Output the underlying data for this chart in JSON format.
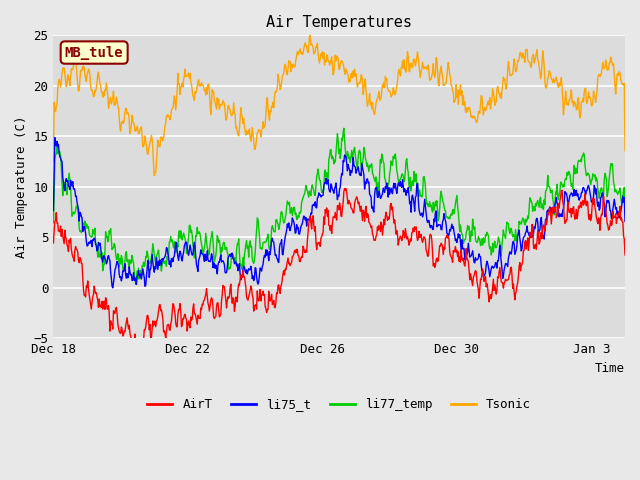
{
  "title": "Air Temperatures",
  "xlabel": "Time",
  "ylabel": "Air Temperature (C)",
  "ylim": [
    -5,
    25
  ],
  "yticks": [
    -5,
    0,
    5,
    10,
    15,
    20,
    25
  ],
  "plot_bg_color": "#e8e8e8",
  "ax_bg_color": "#dcdcdc",
  "grid_color": "#ffffff",
  "annotation_label": "MB_tule",
  "annotation_box_color": "#ffffcc",
  "annotation_text_color": "#8b0000",
  "series_colors": {
    "AirT": "#ff0000",
    "li75_t": "#0000ff",
    "li77_temp": "#00cc00",
    "Tsonic": "#ffa500"
  },
  "xtick_labels": [
    "Dec 18",
    "Dec 22",
    "Dec 26",
    "Dec 30",
    "Jan 3"
  ],
  "xtick_positions": [
    0,
    4,
    8,
    12,
    16
  ],
  "n_points": 800,
  "seed": 1234,
  "airt_base_x": [
    0,
    0.5,
    1,
    1.5,
    2,
    2.5,
    3,
    3.5,
    4,
    4.5,
    5,
    5.5,
    6,
    6.5,
    7,
    7.5,
    8,
    8.5,
    9,
    9.5,
    10,
    10.5,
    11,
    11.5,
    12,
    12.5,
    13,
    13.5,
    14,
    14.5,
    15,
    15.5,
    16,
    16.5,
    17
  ],
  "airt_base_y": [
    7,
    4,
    0,
    -2,
    -4,
    -5,
    -4,
    -3,
    -2,
    -3,
    -2,
    0,
    -1,
    -2,
    2,
    4,
    6,
    8,
    9,
    6,
    7,
    6,
    4,
    4,
    3,
    1,
    0,
    1,
    3,
    5,
    7,
    8,
    8,
    7,
    7
  ],
  "li75_base_x": [
    0,
    0.5,
    1,
    1.5,
    2,
    2.5,
    3,
    3.5,
    4,
    4.5,
    5,
    5.5,
    6,
    6.5,
    7,
    7.5,
    8,
    8.5,
    9,
    9.5,
    10,
    10.5,
    11,
    11.5,
    12,
    12.5,
    13,
    13.5,
    14,
    14.5,
    15,
    15.5,
    16,
    16.5,
    17
  ],
  "li75_base_y": [
    14,
    10,
    5,
    3,
    2,
    1,
    2,
    3,
    4,
    3,
    3,
    2,
    2,
    3,
    5,
    7,
    9,
    11,
    12,
    9,
    10,
    9,
    7,
    6,
    5,
    3,
    2,
    3,
    5,
    6,
    8,
    9,
    9,
    8,
    8
  ],
  "li77_base_x": [
    0,
    0.5,
    1,
    1.5,
    2,
    2.5,
    3,
    3.5,
    4,
    4.5,
    5,
    5.5,
    6,
    6.5,
    7,
    7.5,
    8,
    8.5,
    9,
    9.5,
    10,
    10.5,
    11,
    11.5,
    12,
    12.5,
    13,
    13.5,
    14,
    14.5,
    15,
    15.5,
    16,
    16.5,
    17
  ],
  "li77_base_y": [
    13,
    9,
    5,
    4,
    3,
    2,
    3,
    4,
    5,
    4,
    4,
    3,
    4,
    5,
    7,
    9,
    11,
    13,
    14,
    11,
    12,
    11,
    9,
    8,
    7,
    5,
    4,
    5,
    7,
    8,
    10,
    11,
    11,
    10,
    10
  ],
  "tsonic_base_x": [
    0,
    0.5,
    1,
    1.5,
    2,
    2.5,
    3,
    3.5,
    4,
    4.5,
    5,
    5.5,
    6,
    6.5,
    7,
    7.5,
    8,
    8.5,
    9,
    9.5,
    10,
    10.5,
    11,
    11.5,
    12,
    12.5,
    13,
    13.5,
    14,
    14.5,
    15,
    15.5,
    16,
    16.5,
    17
  ],
  "tsonic_base_y": [
    19,
    21,
    21,
    19,
    17,
    15,
    13,
    18,
    21,
    20,
    18,
    16,
    15,
    18,
    22,
    24,
    23,
    22,
    21,
    18,
    20,
    22,
    22,
    21,
    19,
    17,
    18,
    21,
    23,
    22,
    20,
    18,
    19,
    22,
    20
  ]
}
